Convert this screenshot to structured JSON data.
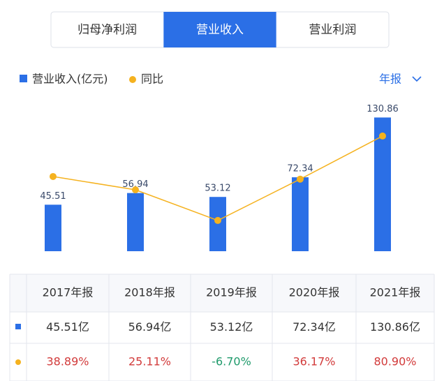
{
  "tabs": {
    "items": [
      "归母净利润",
      "营业收入",
      "营业利润"
    ],
    "active": 1
  },
  "period": "年报",
  "chart_data": {
    "type": "bar",
    "categories": [
      "2017年报",
      "2018年报",
      "2019年报",
      "2020年报",
      "2021年报"
    ],
    "series": [
      {
        "name": "营业收入(亿元)",
        "type": "bar",
        "color": "#2b6fe6",
        "values": [
          45.51,
          56.94,
          53.12,
          72.34,
          130.86
        ]
      },
      {
        "name": "同比",
        "type": "line",
        "axis": "y2",
        "color": "#f5b21f",
        "values": [
          38.89,
          25.11,
          -6.7,
          36.17,
          80.9
        ]
      }
    ],
    "ylim": [
      0,
      140
    ],
    "y2lim": [
      -38.6,
      109.8
    ]
  },
  "table": {
    "rows": [
      [
        "45.51亿",
        "56.94亿",
        "53.12亿",
        "72.34亿",
        "130.86亿"
      ],
      [
        "38.89%",
        "25.11%",
        "-6.70%",
        "36.17%",
        "80.90%"
      ]
    ],
    "positive_color": "#d23b3b",
    "negative_color": "#1f9a6b"
  }
}
